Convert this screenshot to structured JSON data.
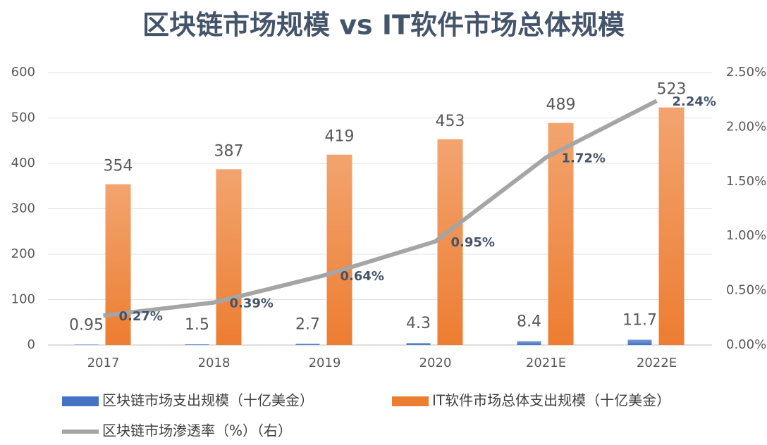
{
  "chart_data": {
    "type": "bar",
    "title": "区块链市场规模 vs IT软件市场总体规模",
    "categories": [
      "2017",
      "2018",
      "2019",
      "2020",
      "2021E",
      "2022E"
    ],
    "series": [
      {
        "name": "区块链市场支出规模（十亿美金）",
        "color": "#4472c4",
        "values": [
          0.95,
          1.5,
          2.7,
          4.3,
          8.4,
          11.7
        ]
      },
      {
        "name": "IT软件市场总体支出规模（十亿美金）",
        "color": "#ed7d31",
        "values": [
          354,
          387,
          419,
          453,
          489,
          523
        ]
      },
      {
        "name": "区块链市场渗透率（%）（右）",
        "color": "#a5a5a5",
        "type": "line",
        "axis": "y2",
        "values": [
          0.27,
          0.39,
          0.64,
          0.95,
          1.72,
          2.24
        ],
        "value_labels": [
          "0.27%",
          "0.39%",
          "0.64%",
          "0.95%",
          "1.72%",
          "2.24%"
        ]
      }
    ],
    "ylim": [
      0,
      600
    ],
    "yticks": [
      0,
      100,
      200,
      300,
      400,
      500,
      600
    ],
    "y2lim": [
      0,
      2.5
    ],
    "y2ticks": [
      {
        "value": 0,
        "label": "0.00%"
      },
      {
        "value": 0.5,
        "label": "0.50%"
      },
      {
        "value": 1,
        "label": "1.00%"
      },
      {
        "value": 1.5,
        "label": "1.50%"
      },
      {
        "value": 2,
        "label": "2.00%"
      },
      {
        "value": 2.5,
        "label": "2.50%"
      }
    ],
    "grid": true
  }
}
